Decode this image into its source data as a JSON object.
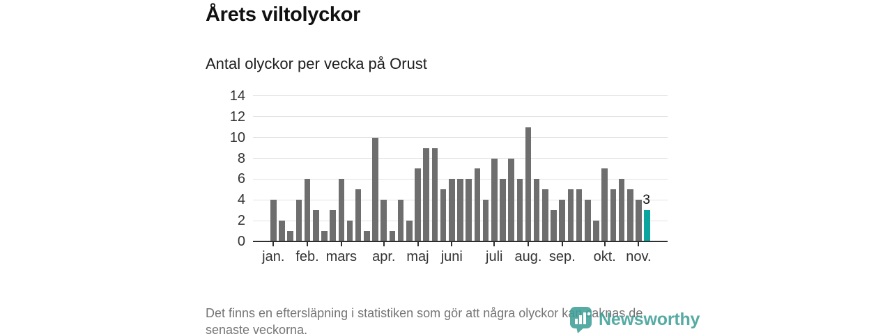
{
  "header": {
    "title": "Årets viltolyckor",
    "subtitle": "Antal olyckor per vecka på Orust"
  },
  "chart_data": {
    "type": "bar",
    "title": "Årets viltolyckor",
    "subtitle": "Antal olyckor per vecka på Orust",
    "x_unit": "vecka",
    "values": [
      4,
      2,
      1,
      4,
      6,
      3,
      1,
      3,
      6,
      2,
      5,
      1,
      10,
      4,
      1,
      4,
      2,
      7,
      9,
      9,
      5,
      6,
      6,
      6,
      7,
      4,
      8,
      6,
      8,
      6,
      11,
      6,
      5,
      3,
      4,
      5,
      5,
      4,
      2,
      7,
      5,
      6,
      5,
      4,
      3
    ],
    "weeks_count": 45,
    "highlight_index": 44,
    "highlight_value": 3,
    "highlight_label": "3",
    "ylim": [
      0,
      14
    ],
    "yticks": [
      0,
      2,
      4,
      6,
      8,
      10,
      12,
      14
    ],
    "xticks": [
      {
        "label": "jan.",
        "week": 1
      },
      {
        "label": "feb.",
        "week": 5
      },
      {
        "label": "mars",
        "week": 9
      },
      {
        "label": "apr.",
        "week": 14
      },
      {
        "label": "maj",
        "week": 18
      },
      {
        "label": "juni",
        "week": 22
      },
      {
        "label": "juli",
        "week": 27
      },
      {
        "label": "aug.",
        "week": 31
      },
      {
        "label": "sep.",
        "week": 35
      },
      {
        "label": "okt.",
        "week": 40
      },
      {
        "label": "nov.",
        "week": 44
      }
    ],
    "grid": "horizontal",
    "legend": "none",
    "bar_color": "#6e6e6e",
    "highlight_color": "#0ba5a0",
    "axis_color": "#2f2f2f",
    "grid_color": "#e2e2e2"
  },
  "footer": {
    "line1": "Det finns en eftersläpning i statistiken som gör att några olyckor kan saknas de",
    "line2": "senaste veckorna."
  },
  "logo": {
    "name": "Newsworthy",
    "color": "#3fa098"
  }
}
